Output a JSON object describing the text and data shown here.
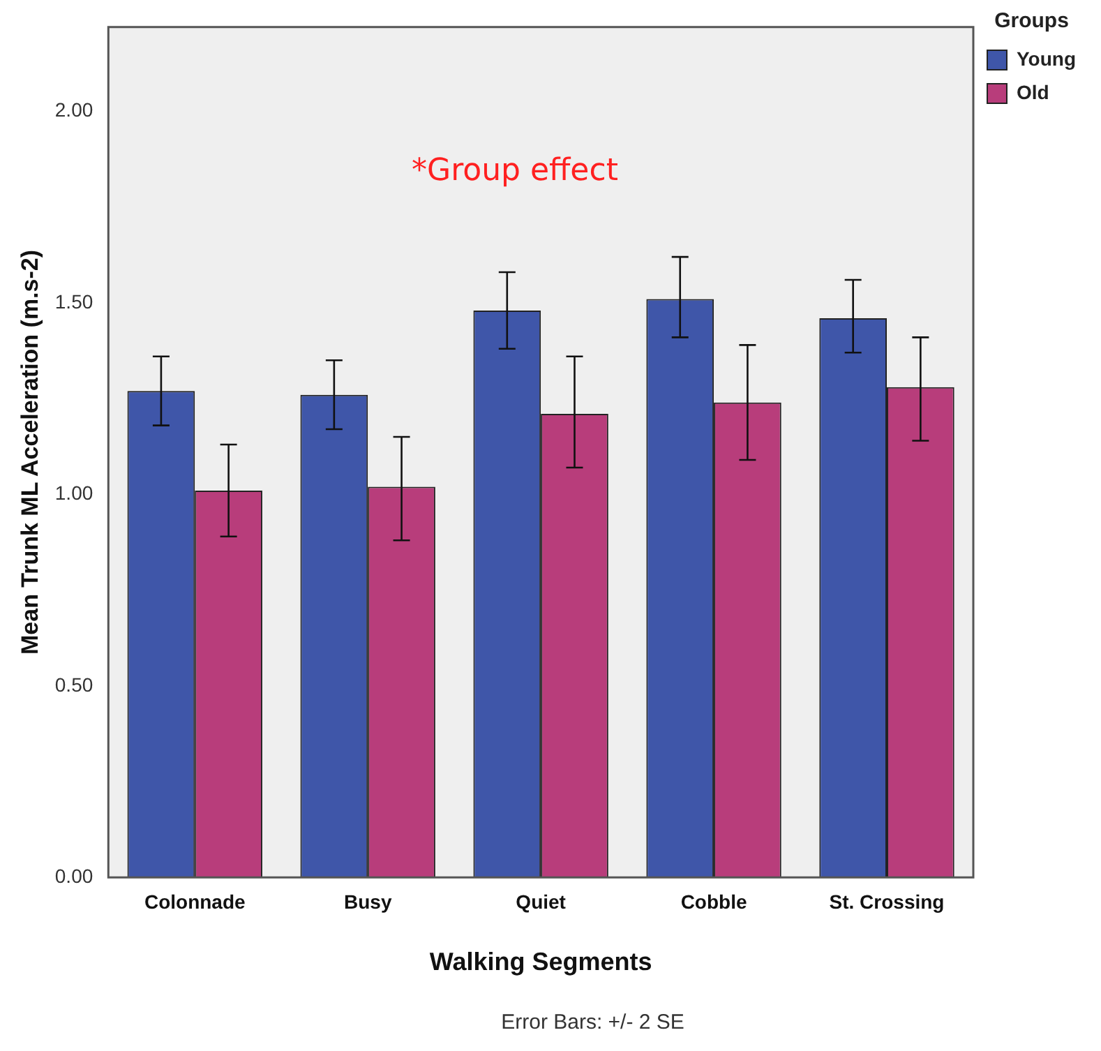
{
  "chart_data": {
    "type": "bar",
    "xlabel": "Walking Segments",
    "ylabel": "Mean Trunk ML Acceleration (m.s-2)",
    "legend_title": "Groups",
    "legend": "top right",
    "grid": false,
    "categories": [
      "Colonnade",
      "Busy",
      "Quiet",
      "Cobble",
      "St. Crossing"
    ],
    "series": [
      {
        "name": "Young",
        "color": "#3f56a9",
        "values": [
          1.27,
          1.26,
          1.48,
          1.51,
          1.46
        ],
        "errors": [
          [
            1.18,
            1.36
          ],
          [
            1.17,
            1.35
          ],
          [
            1.38,
            1.58
          ],
          [
            1.41,
            1.62
          ],
          [
            1.37,
            1.56
          ]
        ]
      },
      {
        "name": "Old",
        "color": "#b83d7b",
        "values": [
          1.01,
          1.02,
          1.21,
          1.24,
          1.28
        ],
        "errors": [
          [
            0.89,
            1.13
          ],
          [
            0.88,
            1.15
          ],
          [
            1.07,
            1.36
          ],
          [
            1.09,
            1.39
          ],
          [
            1.14,
            1.41
          ]
        ]
      }
    ],
    "ylim": [
      0,
      2.22
    ],
    "yticks": [
      {
        "value": 0,
        "label": "0.00"
      },
      {
        "value": 0.5,
        "label": "0.50"
      },
      {
        "value": 1,
        "label": "1.00"
      },
      {
        "value": 1.5,
        "label": "1.50"
      },
      {
        "value": 2,
        "label": "2.00"
      }
    ],
    "annotations": [
      "*Group effect",
      "Error Bars: +/- 2 SE"
    ]
  }
}
